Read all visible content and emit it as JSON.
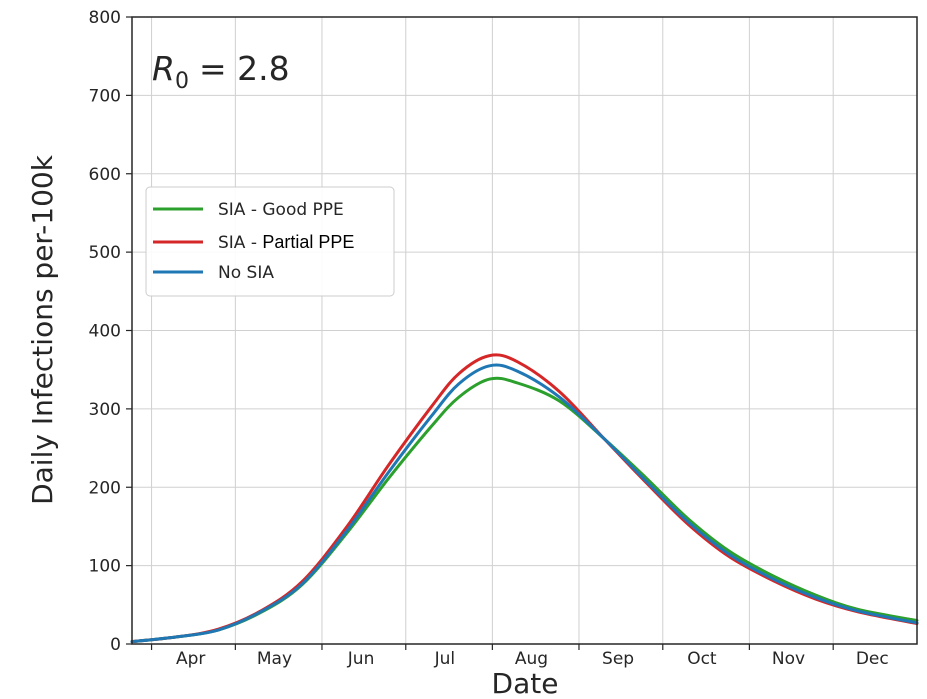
{
  "chart_data": {
    "type": "line",
    "title": "",
    "annotation": {
      "r_symbol": "R",
      "r_subscript": "0",
      "r_value": "= 2.8"
    },
    "xlabel": "Date",
    "ylabel": "Daily Infections per-100k",
    "x_ticks": [
      "Apr",
      "May",
      "Jun",
      "Jul",
      "Aug",
      "Sep",
      "Oct",
      "Nov",
      "Dec"
    ],
    "y_ticks": [
      "0",
      "100",
      "200",
      "300",
      "400",
      "500",
      "600",
      "700",
      "800"
    ],
    "ylim": [
      0,
      800
    ],
    "xlim": [
      "2020-03-25",
      "2020-12-31"
    ],
    "grid": true,
    "legend_position": "center-left",
    "series": [
      {
        "name": "SIA - Good PPE",
        "name_prefix": "SIA - ",
        "name_suffix": "Good PPE",
        "color": "#2ca02c",
        "x": [
          "2020-03-25",
          "2020-04-10",
          "2020-04-25",
          "2020-05-10",
          "2020-05-25",
          "2020-06-10",
          "2020-06-25",
          "2020-07-10",
          "2020-07-20",
          "2020-07-31",
          "2020-08-10",
          "2020-08-25",
          "2020-09-10",
          "2020-09-25",
          "2020-10-10",
          "2020-10-25",
          "2020-11-10",
          "2020-11-25",
          "2020-12-10",
          "2020-12-31"
        ],
        "values": [
          3,
          9,
          18,
          40,
          76,
          142,
          212,
          277,
          315,
          338,
          333,
          310,
          262,
          212,
          160,
          118,
          86,
          62,
          44,
          30
        ]
      },
      {
        "name": "SIA - Partial PPE",
        "name_prefix": "SIA - ",
        "name_suffix": "Partial PPE",
        "color": "#d62728",
        "x": [
          "2020-03-25",
          "2020-04-10",
          "2020-04-25",
          "2020-05-10",
          "2020-05-25",
          "2020-06-10",
          "2020-06-25",
          "2020-07-10",
          "2020-07-20",
          "2020-07-31",
          "2020-08-10",
          "2020-08-25",
          "2020-09-10",
          "2020-09-25",
          "2020-10-10",
          "2020-10-25",
          "2020-11-10",
          "2020-11-25",
          "2020-12-10",
          "2020-12-31"
        ],
        "values": [
          3,
          9,
          19,
          42,
          80,
          150,
          229,
          302,
          345,
          368,
          360,
          322,
          262,
          206,
          153,
          111,
          80,
          57,
          41,
          26
        ]
      },
      {
        "name": "No SIA",
        "color": "#1f77b4",
        "x": [
          "2020-03-25",
          "2020-04-10",
          "2020-04-25",
          "2020-05-10",
          "2020-05-25",
          "2020-06-10",
          "2020-06-25",
          "2020-07-10",
          "2020-07-20",
          "2020-07-31",
          "2020-08-10",
          "2020-08-25",
          "2020-09-10",
          "2020-09-25",
          "2020-10-10",
          "2020-10-25",
          "2020-11-10",
          "2020-11-25",
          "2020-12-10",
          "2020-12-31"
        ],
        "values": [
          3,
          9,
          18,
          41,
          77,
          145,
          220,
          290,
          332,
          355,
          348,
          315,
          262,
          208,
          156,
          114,
          82,
          59,
          42,
          27
        ]
      }
    ]
  }
}
